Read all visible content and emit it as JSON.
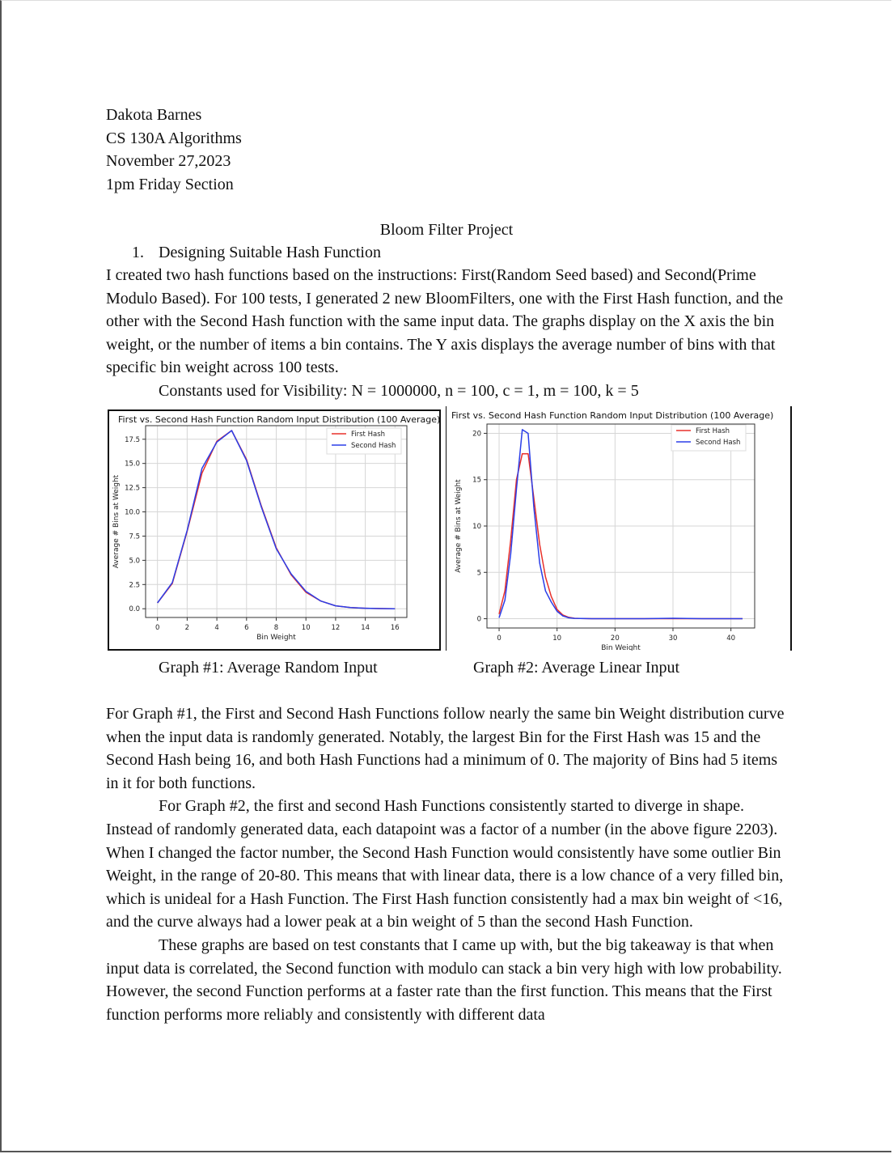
{
  "header": {
    "name": "Dakota Barnes",
    "course": "CS 130A Algorithms",
    "date": "November 27,2023",
    "section": "1pm Friday Section"
  },
  "title": "Bloom Filter Project",
  "section1": {
    "number": "1.",
    "heading": "Designing Suitable Hash Function"
  },
  "intro": "I created two hash functions based on the instructions: First(Random Seed based) and Second(Prime Modulo Based). For 100 tests,  I generated 2 new BloomFilters, one with the First Hash function, and the other with the Second Hash function with the same input data. The graphs display on the X axis the bin weight, or the number of items a bin contains. The Y axis displays the average number of bins with that specific bin weight across 100 tests.",
  "constants": "Constants used for Visibility:  N = 1000000, n = 100, c = 1, m = 100, k = 5",
  "captions": {
    "graph1": "Graph #1: Average Random Input",
    "graph2": "Graph #2: Average Linear Input"
  },
  "paragraphs": [
    "For Graph #1, the First and Second Hash Functions follow nearly the same bin Weight distribution curve when the input data is randomly generated. Notably, the largest Bin for the First Hash was 15  and the Second Hash being 16, and both Hash Functions had a minimum of 0. The majority of Bins had 5 items in it for both functions.",
    "For Graph #2, the first and second Hash Functions consistently started to diverge in shape. Instead of randomly generated data, each datapoint was a factor of a number (in the above figure 2203). When I changed the factor number, the Second Hash Function would consistently have some outlier Bin Weight, in the range of 20-80. This means that with linear data, there is a low chance of a very filled bin, which is unideal for a Hash Function. The First Hash function consistently had a max bin weight of <16, and the curve always had a lower peak at a bin weight of 5 than the second Hash Function.",
    "These graphs are based on test constants that I came up with, but the big takeaway is that when input data is correlated, the Second function with modulo can stack a bin very high with low probability. However, the second Function performs at a faster rate than the first function. This means that the First function performs more reliably and consistently with different data"
  ],
  "chart_data": [
    {
      "type": "line",
      "title": "First vs. Second Hash Function Random Input Distribution (100 Average)",
      "xlabel": "Bin Weight",
      "ylabel": "Average # Bins at Weight",
      "xlim": [
        -0.8,
        16.8
      ],
      "ylim": [
        -0.9,
        18.9
      ],
      "xticks": [
        0,
        2,
        4,
        6,
        8,
        10,
        12,
        14,
        16
      ],
      "yticks": [
        0.0,
        2.5,
        5.0,
        7.5,
        10.0,
        12.5,
        15.0,
        17.5
      ],
      "ytick_labels": [
        "0.0",
        "2.5",
        "5.0",
        "7.5",
        "10.0",
        "12.5",
        "15.0",
        "17.5"
      ],
      "grid": true,
      "legend": "top-right",
      "series": [
        {
          "name": "First Hash",
          "color": "#e8302b",
          "x": [
            0,
            1,
            2,
            3,
            4,
            5,
            6,
            7,
            8,
            9,
            10,
            11,
            12,
            13,
            14,
            15,
            16
          ],
          "y": [
            0.6,
            2.6,
            8.0,
            14.0,
            17.3,
            18.4,
            15.4,
            10.6,
            6.3,
            3.5,
            1.7,
            0.8,
            0.3,
            0.12,
            0.05,
            0.02,
            0.0
          ]
        },
        {
          "name": "Second Hash",
          "color": "#2b3ee8",
          "x": [
            0,
            1,
            2,
            3,
            4,
            5,
            6,
            7,
            8,
            9,
            10,
            11,
            12,
            13,
            14,
            15,
            16
          ],
          "y": [
            0.6,
            2.7,
            8.1,
            14.5,
            17.2,
            18.4,
            15.3,
            10.5,
            6.2,
            3.6,
            1.8,
            0.8,
            0.3,
            0.12,
            0.05,
            0.02,
            0.0
          ]
        }
      ]
    },
    {
      "type": "line",
      "title": "First vs. Second Hash Function Random Input Distribution (100 Average)",
      "xlabel": "Bin Weight",
      "ylabel": "Average # Bins at Weight",
      "xlim": [
        -2.1,
        44.1
      ],
      "ylim": [
        -1.0,
        21.0
      ],
      "xticks": [
        0,
        10,
        20,
        30,
        40
      ],
      "yticks": [
        0,
        5,
        10,
        15,
        20
      ],
      "ytick_labels": [
        "0",
        "5",
        "10",
        "15",
        "20"
      ],
      "grid": true,
      "legend": "top-right",
      "series": [
        {
          "name": "First Hash",
          "color": "#e8302b",
          "x": [
            0,
            1,
            2,
            3,
            4,
            5,
            6,
            7,
            8,
            9,
            10,
            11,
            12,
            13,
            14,
            15,
            16,
            17,
            18,
            20,
            25,
            30,
            35,
            40,
            42
          ],
          "y": [
            0.5,
            3.0,
            8.5,
            15.0,
            17.8,
            17.8,
            13.0,
            8.0,
            4.5,
            2.4,
            1.0,
            0.4,
            0.15,
            0.05,
            0.02,
            0.01,
            0,
            0,
            0,
            0,
            0,
            0,
            0,
            0,
            0
          ]
        },
        {
          "name": "Second Hash",
          "color": "#2b3ee8",
          "x": [
            0,
            1,
            2,
            3,
            4,
            5,
            6,
            7,
            8,
            9,
            10,
            11,
            12,
            13,
            14,
            15,
            16,
            17,
            18,
            20,
            25,
            30,
            35,
            40,
            42
          ],
          "y": [
            0.1,
            2.0,
            7.0,
            14.0,
            20.4,
            20.0,
            12.0,
            6.0,
            3.0,
            1.8,
            0.8,
            0.3,
            0.1,
            0.04,
            0.02,
            0.01,
            0,
            0,
            0,
            0,
            0,
            0.05,
            0,
            0,
            0
          ]
        }
      ]
    }
  ]
}
